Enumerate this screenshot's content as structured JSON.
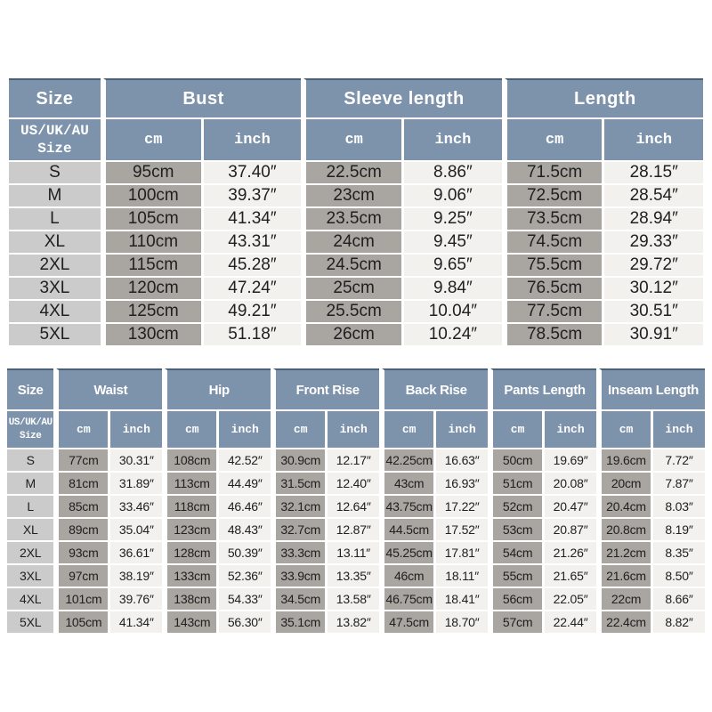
{
  "page": {
    "background": "#ffffff",
    "description": "Apparel size chart image with two measurement tables (top garment and pants)"
  },
  "colors": {
    "header_blue": "#7d92ab",
    "header_top_border": "#4a6078",
    "size_column_gray": "#cbcbcb",
    "cm_column_gray": "#a9a5a0",
    "inch_column_light": "#f2f1ee",
    "text_dark": "#202020",
    "text_white": "#ffffff"
  },
  "table1": {
    "col_groups": [
      "Size",
      "Bust",
      "Sleeve length",
      "Length"
    ],
    "subheaders": [
      "US/UK/AU Size",
      "cm",
      "inch",
      "cm",
      "inch",
      "cm",
      "inch"
    ]
  },
  "table2": {
    "col_groups": [
      "Size",
      "Waist",
      "Hip",
      "Front Rise",
      "Back Rise",
      "Pants Length",
      "Inseam Length"
    ],
    "subheaders": [
      "US/UK/AU Size",
      "cm",
      "inch",
      "cm",
      "inch",
      "cm",
      "inch",
      "cm",
      "inch",
      "cm",
      "inch",
      "cm",
      "inch"
    ]
  },
  "chart_data": [
    {
      "type": "table",
      "title": "Top garment size chart",
      "column_groups": [
        "Size",
        "Bust",
        "Sleeve length",
        "Length"
      ],
      "columns": [
        "US/UK/AU Size",
        "Bust cm",
        "Bust inch",
        "Sleeve length cm",
        "Sleeve length inch",
        "Length cm",
        "Length inch"
      ],
      "rows": [
        [
          "S",
          "95cm",
          "37.40″",
          "22.5cm",
          "8.86″",
          "71.5cm",
          "28.15″"
        ],
        [
          "M",
          "100cm",
          "39.37″",
          "23cm",
          "9.06″",
          "72.5cm",
          "28.54″"
        ],
        [
          "L",
          "105cm",
          "41.34″",
          "23.5cm",
          "9.25″",
          "73.5cm",
          "28.94″"
        ],
        [
          "XL",
          "110cm",
          "43.31″",
          "24cm",
          "9.45″",
          "74.5cm",
          "29.33″"
        ],
        [
          "2XL",
          "115cm",
          "45.28″",
          "24.5cm",
          "9.65″",
          "75.5cm",
          "29.72″"
        ],
        [
          "3XL",
          "120cm",
          "47.24″",
          "25cm",
          "9.84″",
          "76.5cm",
          "30.12″"
        ],
        [
          "4XL",
          "125cm",
          "49.21″",
          "25.5cm",
          "10.04″",
          "77.5cm",
          "30.51″"
        ],
        [
          "5XL",
          "130cm",
          "51.18″",
          "26cm",
          "10.24″",
          "78.5cm",
          "30.91″"
        ]
      ]
    },
    {
      "type": "table",
      "title": "Pants size chart",
      "column_groups": [
        "Size",
        "Waist",
        "Hip",
        "Front Rise",
        "Back Rise",
        "Pants Length",
        "Inseam Length"
      ],
      "columns": [
        "US/UK/AU Size",
        "Waist cm",
        "Waist inch",
        "Hip cm",
        "Hip inch",
        "Front Rise cm",
        "Front Rise inch",
        "Back Rise cm",
        "Back Rise inch",
        "Pants Length cm",
        "Pants Length inch",
        "Inseam Length cm",
        "Inseam Length inch"
      ],
      "rows": [
        [
          "S",
          "77cm",
          "30.31″",
          "108cm",
          "42.52″",
          "30.9cm",
          "12.17″",
          "42.25cm",
          "16.63″",
          "50cm",
          "19.69″",
          "19.6cm",
          "7.72″"
        ],
        [
          "M",
          "81cm",
          "31.89″",
          "113cm",
          "44.49″",
          "31.5cm",
          "12.40″",
          "43cm",
          "16.93″",
          "51cm",
          "20.08″",
          "20cm",
          "7.87″"
        ],
        [
          "L",
          "85cm",
          "33.46″",
          "118cm",
          "46.46″",
          "32.1cm",
          "12.64″",
          "43.75cm",
          "17.22″",
          "52cm",
          "20.47″",
          "20.4cm",
          "8.03″"
        ],
        [
          "XL",
          "89cm",
          "35.04″",
          "123cm",
          "48.43″",
          "32.7cm",
          "12.87″",
          "44.5cm",
          "17.52″",
          "53cm",
          "20.87″",
          "20.8cm",
          "8.19″"
        ],
        [
          "2XL",
          "93cm",
          "36.61″",
          "128cm",
          "50.39″",
          "33.3cm",
          "13.11″",
          "45.25cm",
          "17.81″",
          "54cm",
          "21.26″",
          "21.2cm",
          "8.35″"
        ],
        [
          "3XL",
          "97cm",
          "38.19″",
          "133cm",
          "52.36″",
          "33.9cm",
          "13.35″",
          "46cm",
          "18.11″",
          "55cm",
          "21.65″",
          "21.6cm",
          "8.50″"
        ],
        [
          "4XL",
          "101cm",
          "39.76″",
          "138cm",
          "54.33″",
          "34.5cm",
          "13.58″",
          "46.75cm",
          "18.41″",
          "56cm",
          "22.05″",
          "22cm",
          "8.66″"
        ],
        [
          "5XL",
          "105cm",
          "41.34″",
          "143cm",
          "56.30″",
          "35.1cm",
          "13.82″",
          "47.5cm",
          "18.70″",
          "57cm",
          "22.44″",
          "22.4cm",
          "8.82″"
        ]
      ]
    }
  ]
}
